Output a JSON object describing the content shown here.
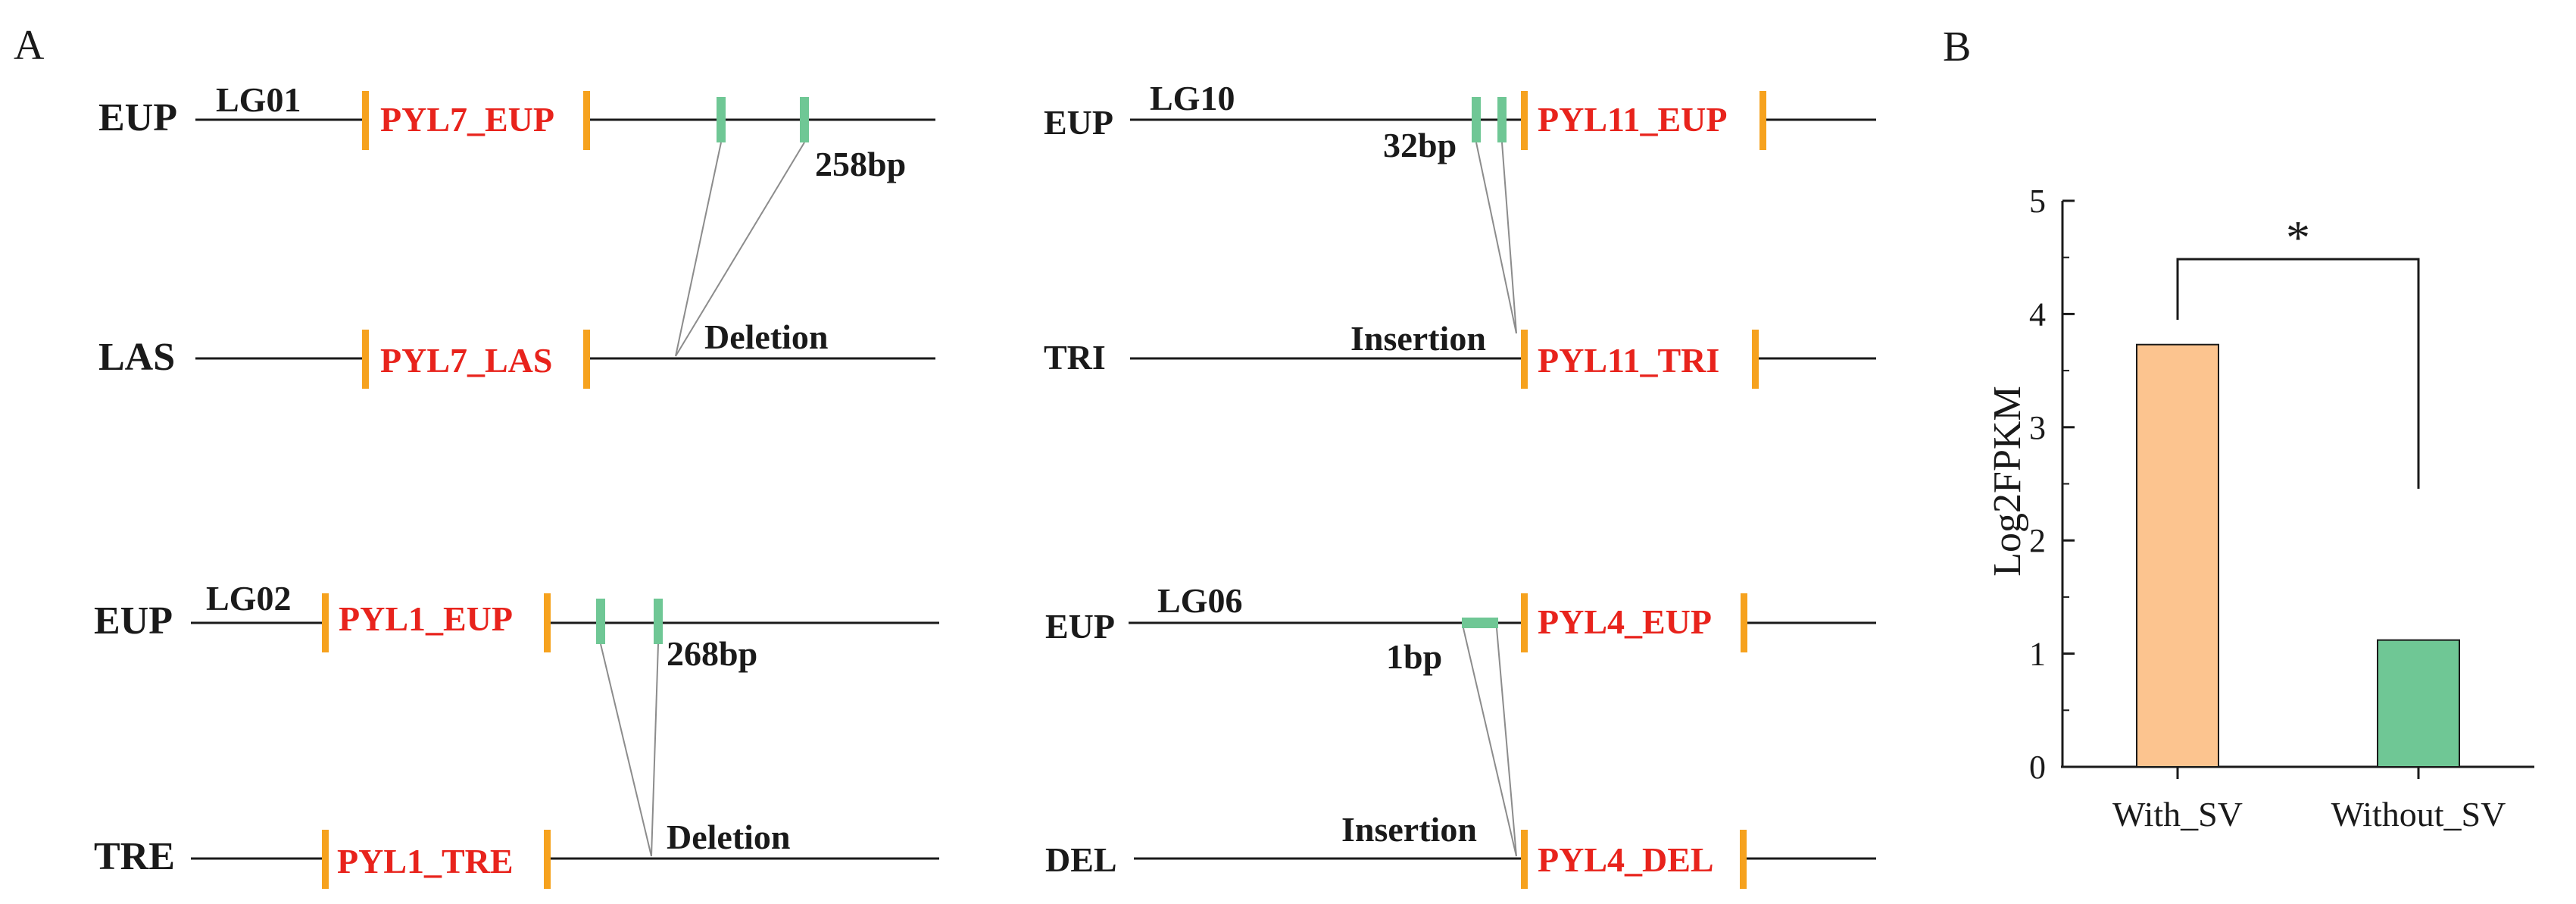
{
  "colors": {
    "gene_text": "#e8231c",
    "gene_marker": "#f6a21e",
    "sv_marker": "#6fc795",
    "line": "#1a1a1a",
    "connector": "#8c8c8c",
    "bar_with": "#fcc48f",
    "bar_without": "#6fc795"
  },
  "panel_a": {
    "label": "A",
    "blocks": [
      {
        "top": {
          "species": "EUP",
          "lg": "LG01",
          "gene": "PYL7_EUP",
          "size": "258bp"
        },
        "bottom": {
          "species": "LAS",
          "gene": "PYL7_LAS",
          "event": "Deletion"
        }
      },
      {
        "top": {
          "species": "EUP",
          "lg": "LG10",
          "gene": "PYL11_EUP",
          "size": "32bp"
        },
        "bottom": {
          "species": "TRI",
          "gene": "PYL11_TRI",
          "event": "Insertion"
        }
      },
      {
        "top": {
          "species": "EUP",
          "lg": "LG02",
          "gene": "PYL1_EUP",
          "size": "268bp"
        },
        "bottom": {
          "species": "TRE",
          "gene": "PYL1_TRE",
          "event": "Deletion"
        }
      },
      {
        "top": {
          "species": "EUP",
          "lg": "LG06",
          "gene": "PYL4_EUP",
          "size": "1bp"
        },
        "bottom": {
          "species": "DEL",
          "gene": "PYL4_DEL",
          "event": "Insertion"
        }
      }
    ]
  },
  "panel_b": {
    "label": "B",
    "significance": "*",
    "tick_labels": [
      "0",
      "1",
      "2",
      "3",
      "4",
      "5"
    ]
  },
  "chart_data": {
    "type": "bar",
    "categories": [
      "With_SV",
      "Without_SV"
    ],
    "values": [
      3.73,
      1.12
    ],
    "ylabel": "Log2FPKM",
    "xlabel": "",
    "ylim": [
      0,
      5
    ],
    "yticks": [
      0,
      1,
      2,
      3,
      4,
      5
    ],
    "minor_ticks": true,
    "significance_marker": "*",
    "grid": false,
    "colors": [
      "#fcc48f",
      "#6fc795"
    ]
  }
}
